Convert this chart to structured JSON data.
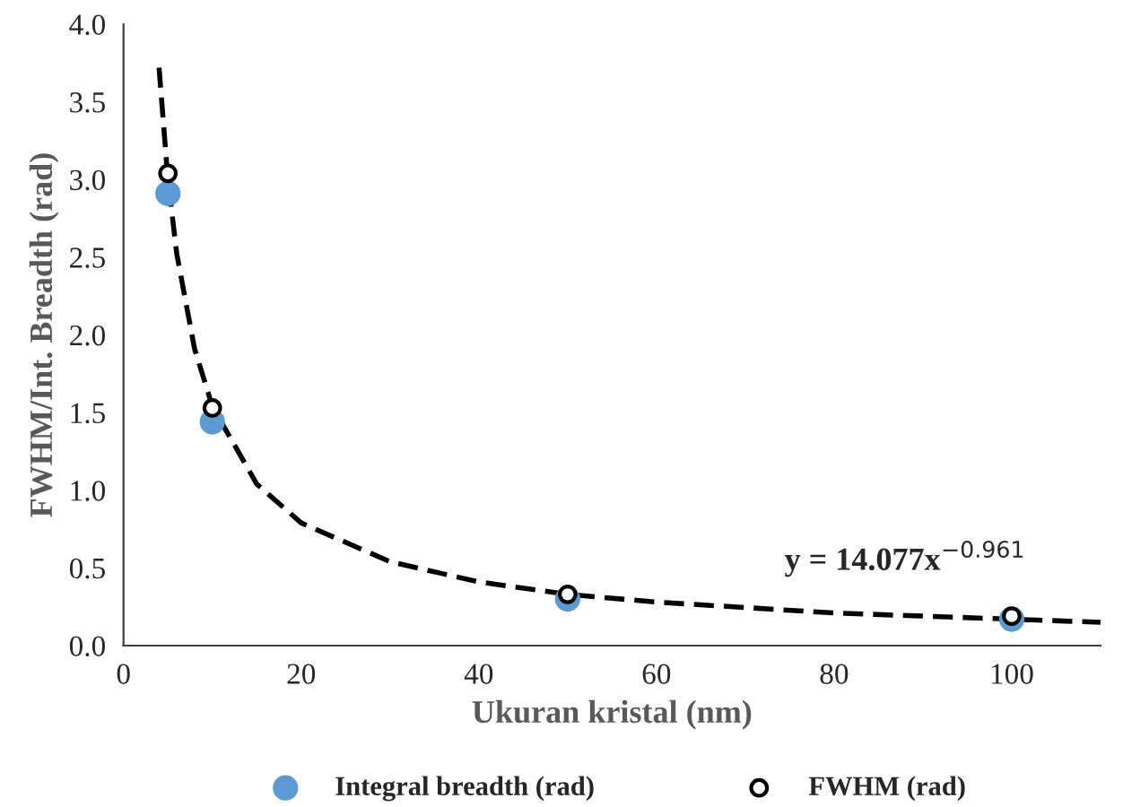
{
  "chart_data": {
    "type": "scatter",
    "xlabel": "Ukuran kristal (nm)",
    "ylabel": "FWHM/Int. Breadth (rad)",
    "xlim": [
      0,
      110
    ],
    "xticks": [
      0,
      20,
      40,
      60,
      80,
      100
    ],
    "ylim": [
      0,
      4.0
    ],
    "yticks": [
      {
        "value": 0,
        "label": "0.0"
      },
      {
        "value": 0.5,
        "label": "0.5"
      },
      {
        "value": 1.0,
        "label": "1.0"
      },
      {
        "value": 1.5,
        "label": "1.5"
      },
      {
        "value": 2.0,
        "label": "2.0"
      },
      {
        "value": 2.5,
        "label": "2.5"
      },
      {
        "value": 3.0,
        "label": "3.0"
      },
      {
        "value": 3.5,
        "label": "3.5"
      },
      {
        "value": 4.0,
        "label": "4.0"
      }
    ],
    "grid": false,
    "legend": "bottom",
    "annotations": [
      "y = 14.077x$^{−0.961}$"
    ],
    "series": [
      {
        "name": "Integral breadth (rad)",
        "color": "#5b9bd5",
        "marker": "circle",
        "x": [
          5,
          10,
          50,
          100
        ],
        "values": [
          2.91,
          1.44,
          0.3,
          0.17
        ]
      },
      {
        "name": "FWHM (rad)",
        "color": "#000000",
        "marker": "circle",
        "x": [
          5,
          10,
          50,
          100
        ],
        "values": [
          3.04,
          1.53,
          0.33,
          0.19
        ]
      },
      {
        "type": "line",
        "color": "#000000",
        "line_style": "dashed",
        "x": [
          4,
          5,
          6,
          8,
          10,
          15,
          20,
          30,
          40,
          50,
          60,
          80,
          100,
          110
        ],
        "values": [
          3.72,
          3.0,
          2.52,
          1.91,
          1.54,
          1.04,
          0.79,
          0.54,
          0.41,
          0.33,
          0.28,
          0.21,
          0.17,
          0.15
        ]
      }
    ]
  }
}
